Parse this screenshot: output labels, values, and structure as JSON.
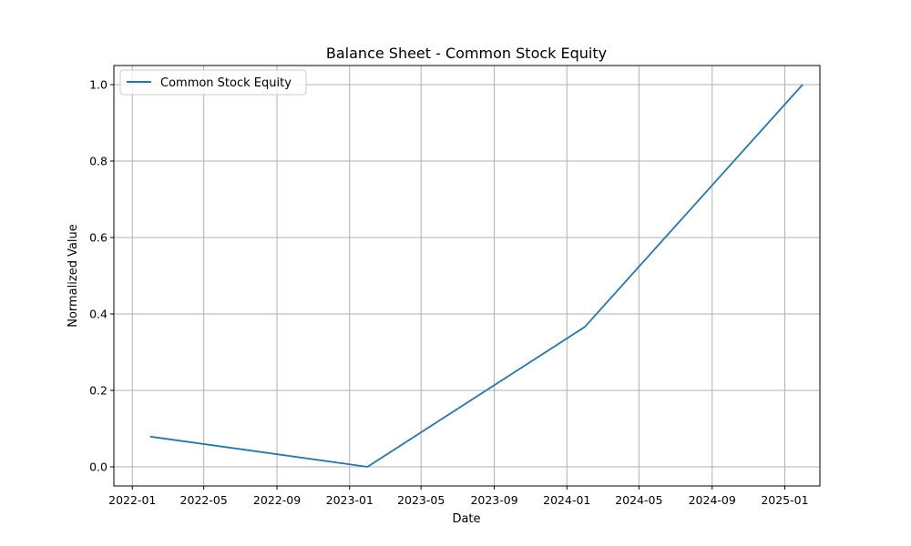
{
  "chart_data": {
    "type": "line",
    "title": "Balance Sheet - Common Stock Equity",
    "xlabel": "Date",
    "ylabel": "Normalized Value",
    "xlim": [
      "2021-12-01",
      "2025-03-01"
    ],
    "ylim": [
      -0.05,
      1.05
    ],
    "x_ticks": [
      "2022-01",
      "2022-05",
      "2022-09",
      "2023-01",
      "2023-05",
      "2023-09",
      "2024-01",
      "2024-05",
      "2024-09",
      "2025-01"
    ],
    "y_ticks": [
      "0.0",
      "0.2",
      "0.4",
      "0.6",
      "0.8",
      "1.0"
    ],
    "grid": true,
    "legend_position": "top-left",
    "series": [
      {
        "name": "Common Stock Equity",
        "color": "#1f77b4",
        "x": [
          "2022-01-31",
          "2023-01-31",
          "2024-01-31",
          "2025-01-31"
        ],
        "y": [
          0.079,
          0.0,
          0.366,
          1.0
        ]
      }
    ]
  }
}
